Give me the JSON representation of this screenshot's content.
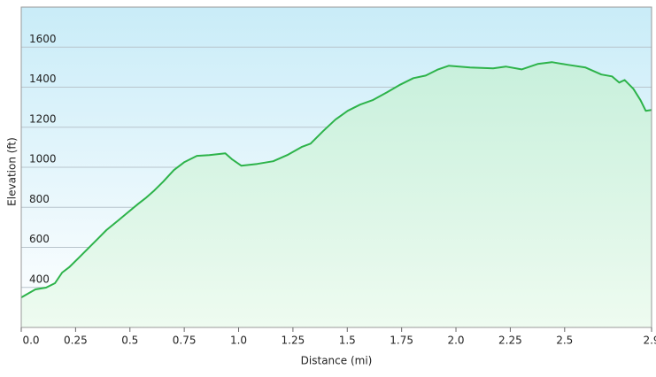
{
  "chart_data": {
    "type": "area",
    "x_label": "Distance (mi)",
    "y_label": "Elevation (ft)",
    "x": [
      0,
      0.065,
      0.114,
      0.155,
      0.188,
      0.22,
      0.261,
      0.31,
      0.359,
      0.392,
      0.441,
      0.49,
      0.539,
      0.571,
      0.612,
      0.653,
      0.702,
      0.751,
      0.808,
      0.865,
      0.939,
      0.971,
      1.012,
      1.086,
      1.159,
      1.224,
      1.29,
      1.331,
      1.388,
      1.445,
      1.502,
      1.559,
      1.616,
      1.682,
      1.739,
      1.804,
      1.861,
      1.918,
      1.967,
      2.065,
      2.171,
      2.229,
      2.302,
      2.376,
      2.441,
      2.514,
      2.596,
      2.669,
      2.718,
      2.751,
      2.776,
      2.816,
      2.849,
      2.873,
      2.9
    ],
    "values": [
      350,
      390,
      399,
      421,
      474,
      500,
      544,
      597,
      650,
      686,
      730,
      774,
      818,
      845,
      884,
      928,
      986,
      1026,
      1057,
      1061,
      1070,
      1039,
      1008,
      1017,
      1030,
      1061,
      1101,
      1118,
      1180,
      1238,
      1282,
      1313,
      1335,
      1374,
      1410,
      1445,
      1458,
      1489,
      1507,
      1498,
      1494,
      1503,
      1489,
      1516,
      1525,
      1512,
      1498,
      1463,
      1454,
      1423,
      1436,
      1392,
      1335,
      1282,
      1286
    ],
    "color": "#2db34a",
    "xlim": [
      0,
      2.9
    ],
    "ylim": [
      200,
      1800
    ],
    "xticks": [
      {
        "value": 0,
        "label": "0.0"
      },
      0.25,
      0.5,
      0.75,
      {
        "value": 1,
        "label": "1.0"
      },
      1.25,
      1.5,
      1.75,
      {
        "value": 2,
        "label": "2.0"
      },
      2.25,
      2.5,
      2.9
    ],
    "yticks": [
      400,
      600,
      800,
      1000,
      1200,
      1400,
      1600
    ],
    "grid": true
  }
}
